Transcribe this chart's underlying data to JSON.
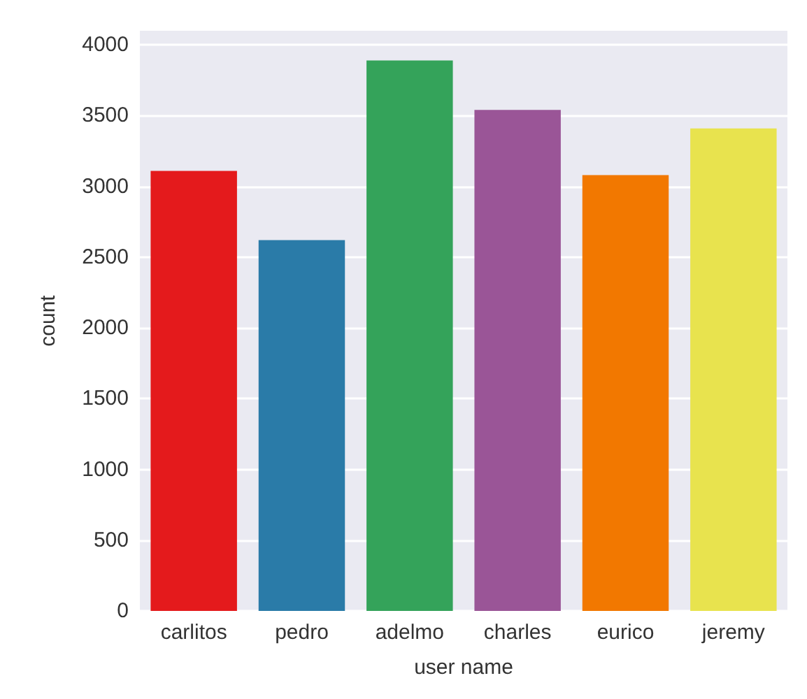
{
  "chart_data": {
    "type": "bar",
    "xlabel": "user name",
    "ylabel": "count",
    "categories": [
      "carlitos",
      "pedro",
      "adelmo",
      "charles",
      "eurico",
      "jeremy"
    ],
    "values": [
      3110,
      2620,
      3890,
      3540,
      3080,
      3410
    ],
    "colors": [
      "#e41a1c",
      "#2a7ba8",
      "#34a35a",
      "#9a5597",
      "#f27800",
      "#e8e34e"
    ],
    "ylim": [
      0,
      4100
    ],
    "yticks": [
      0,
      500,
      1000,
      1500,
      2000,
      2500,
      3000,
      3500,
      4000
    ],
    "grid": "y"
  }
}
